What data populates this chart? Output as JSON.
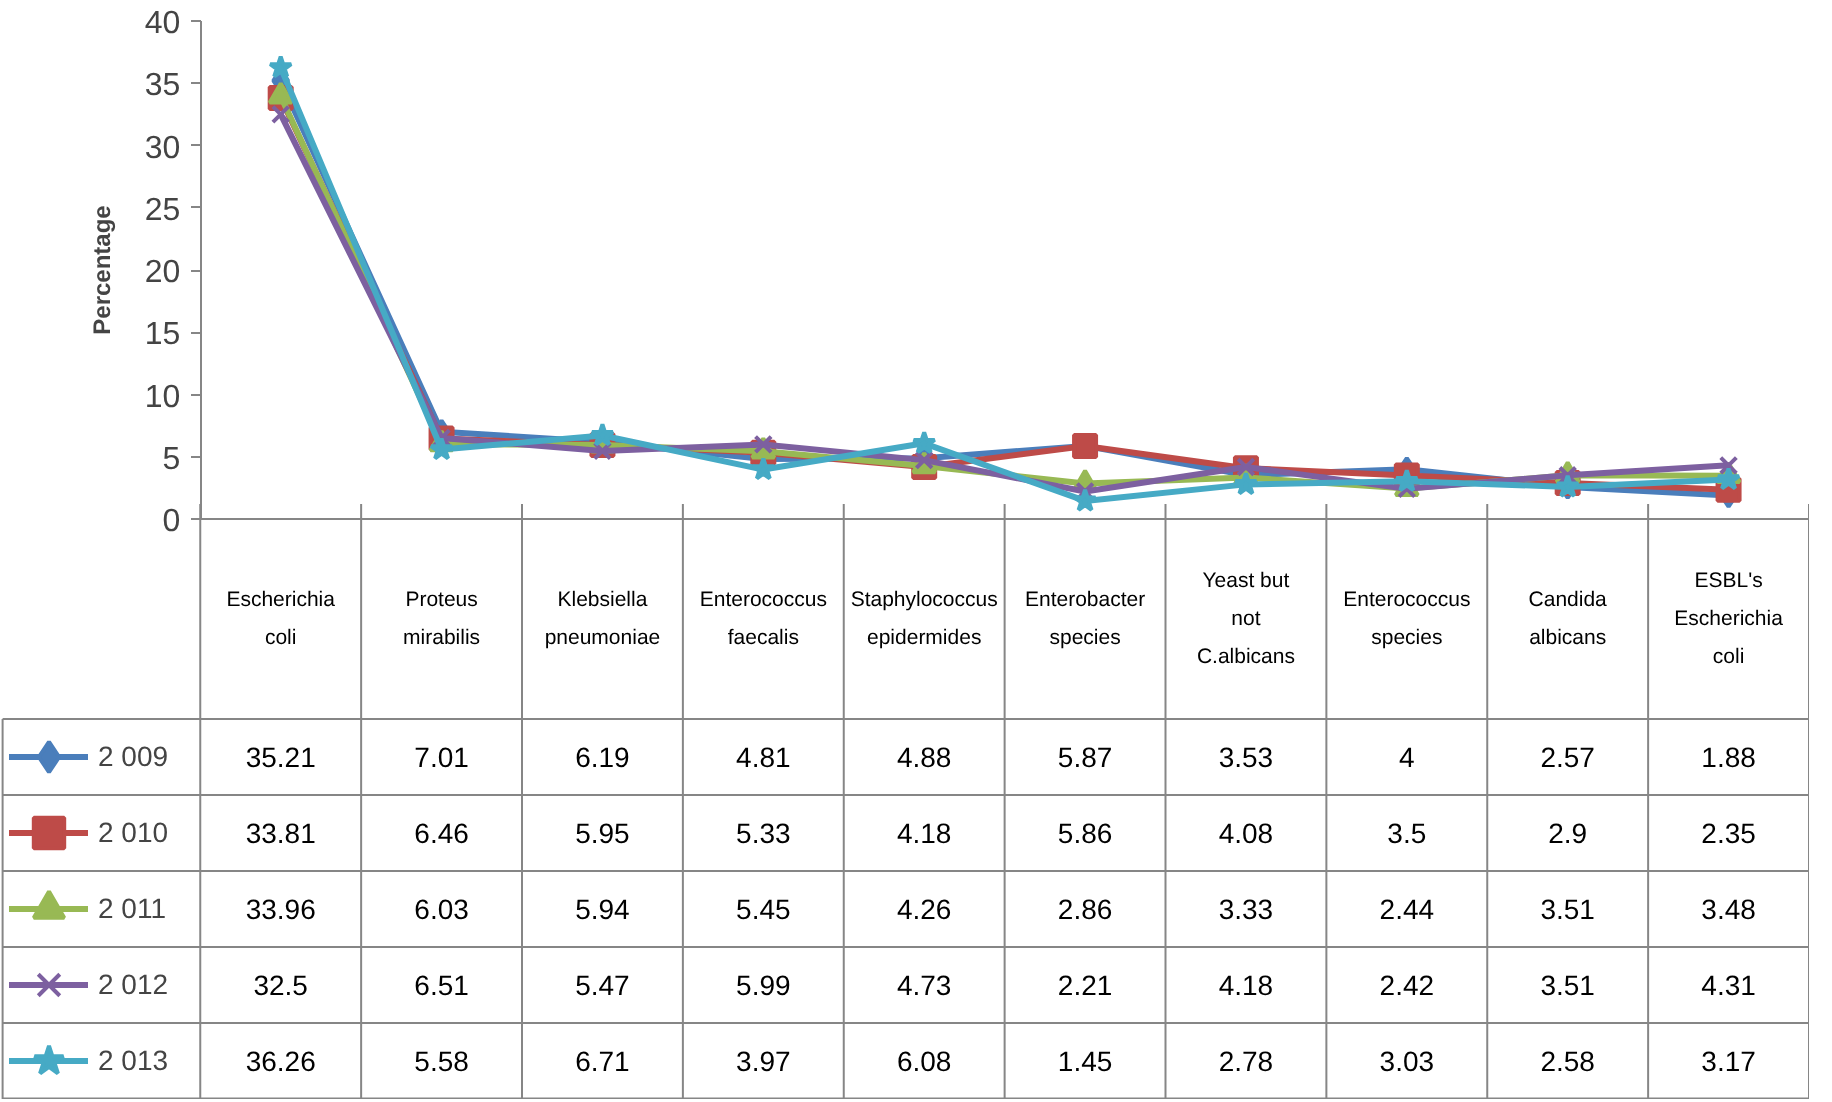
{
  "chart_data": {
    "type": "line",
    "ylabel": "Percentage",
    "categories": [
      "Escherichia coli",
      "Proteus mirabilis",
      "Klebsiella pneumoniae",
      "Enterococcus faecalis",
      "Staphylococcus epidermides",
      "Enterobacter species",
      "Yeast but not C.albicans",
      "Enterococcus species",
      "Candida albicans",
      "ESBL's Escherichia coli"
    ],
    "series": [
      {
        "name": "2 009",
        "color": "#4a7ebb",
        "marker": "diamond",
        "values": [
          35.21,
          7.01,
          6.19,
          4.81,
          4.88,
          5.87,
          3.53,
          4,
          2.57,
          1.88
        ]
      },
      {
        "name": "2 010",
        "color": "#be4b48",
        "marker": "square",
        "values": [
          33.81,
          6.46,
          5.95,
          5.33,
          4.18,
          5.86,
          4.08,
          3.5,
          2.9,
          2.35
        ]
      },
      {
        "name": "2 011",
        "color": "#98b954",
        "marker": "triangle",
        "values": [
          33.96,
          6.03,
          5.94,
          5.45,
          4.26,
          2.86,
          3.33,
          2.44,
          3.51,
          3.48
        ]
      },
      {
        "name": "2 012",
        "color": "#7d60a0",
        "marker": "cross",
        "values": [
          32.5,
          6.51,
          5.47,
          5.99,
          4.73,
          2.21,
          4.18,
          2.42,
          3.51,
          4.31
        ]
      },
      {
        "name": "2 013",
        "color": "#46aac5",
        "marker": "star",
        "values": [
          36.26,
          5.58,
          6.71,
          3.97,
          6.08,
          1.45,
          2.78,
          3.03,
          2.58,
          3.17
        ]
      }
    ],
    "ylim": [
      0,
      40
    ],
    "yticks": [
      0,
      5,
      10,
      15,
      20,
      25,
      30,
      35,
      40
    ],
    "grid": false,
    "legend": "bottom left",
    "line_style": "solid",
    "data_labels": true
  }
}
